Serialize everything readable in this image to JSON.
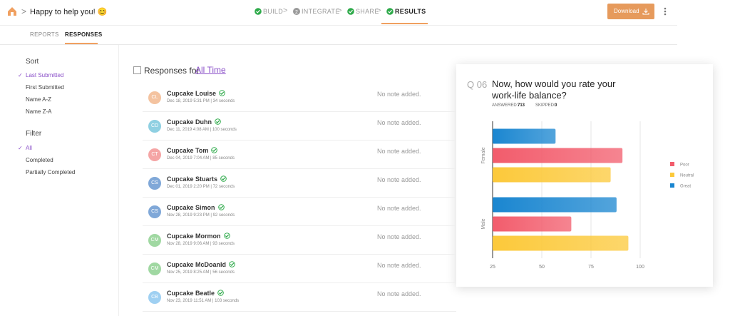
{
  "header": {
    "title": "Happy to help you! 😊",
    "steps": [
      {
        "label": "BUILD"
      },
      {
        "label": "INTEGRATE",
        "number": 2
      },
      {
        "label": "SHARE"
      },
      {
        "label": "RESULTS"
      }
    ],
    "download": "Download"
  },
  "tabs": [
    "REPORTS",
    "RESPONSES"
  ],
  "sidebar": {
    "sort_title": "Sort",
    "sort_options": [
      "Last Submitted",
      "First Submitted",
      "Name A-Z",
      "Name Z-A"
    ],
    "sort_selected": 0,
    "filter_title": "Filter",
    "filter_options": [
      "All",
      "Completed",
      "Partially Completed"
    ],
    "filter_selected": 0
  },
  "list": {
    "heading": "Responses for",
    "period": "All Time",
    "rows": [
      {
        "initials": "CL",
        "name": "Cupcake Louise",
        "meta": "Dec 18, 2019 5:31 PM | 34 seconds",
        "note": "No note added.",
        "color": "#f4c3a0"
      },
      {
        "initials": "CD",
        "name": "Cupcake Duhn",
        "meta": "Dec 11, 2019 4:08 AM | 100 seconds",
        "note": "No note added.",
        "color": "#8fd0e2"
      },
      {
        "initials": "CT",
        "name": "Cupcake Tom",
        "meta": "Dec 04, 2019 7:04 AM | 85 seconds",
        "note": "No note added.",
        "color": "#f5a5a5"
      },
      {
        "initials": "CS",
        "name": "Cupcake Stuarts",
        "meta": "Dec 01, 2019 2:20 PM | 72 seconds",
        "note": "No note added.",
        "color": "#80a8d8"
      },
      {
        "initials": "CS",
        "name": "Cupcake Simon",
        "meta": "Nov 28, 2019 9:23 PM | 92 seconds",
        "note": "No note added.",
        "color": "#80a8d8"
      },
      {
        "initials": "CM",
        "name": "Cupcake Mormon",
        "meta": "Nov 28, 2019 9:06 AM | 93 seconds",
        "note": "No note added.",
        "color": "#a0d8a2"
      },
      {
        "initials": "CM",
        "name": "Cupcake McDoanld",
        "meta": "Nov 25, 2019 8:25 AM | 56 seconds",
        "note": "No note added.",
        "color": "#a0d8a2"
      },
      {
        "initials": "CB",
        "name": "Cupcake Beatle",
        "meta": "Nov 23, 2019 11:51 AM | 103 seconds",
        "note": "No note added.",
        "color": "#9fd0f2"
      }
    ]
  },
  "question": {
    "number": "Q 06",
    "answered_label": "ANSWERED:",
    "answered": 713,
    "skipped_label": "SKIPPED:",
    "skipped": 0
  },
  "chart_data": {
    "type": "hbar",
    "title": "Now, how would you rate your work-life balance?",
    "categories": [
      "Female",
      "Male"
    ],
    "series": [
      {
        "name": "Poor",
        "color": "#f25c6c",
        "values": [
          91,
          65
        ]
      },
      {
        "name": "Neutral",
        "color": "#fcc93a",
        "values": [
          85,
          94
        ]
      },
      {
        "name": "Great",
        "color": "#1a86d0",
        "values": [
          57,
          88
        ]
      }
    ],
    "bar_order": [
      2,
      0,
      1
    ],
    "xlim": [
      25,
      100
    ],
    "xticks": [
      25,
      50,
      75,
      100
    ],
    "grid": true
  }
}
